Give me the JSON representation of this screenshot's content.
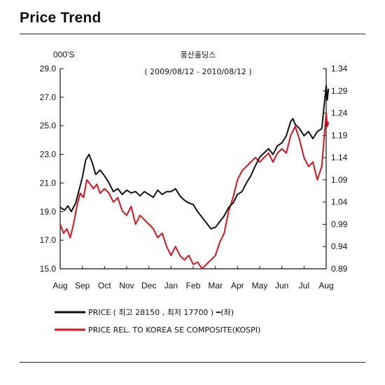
{
  "heading": "Price Trend",
  "chart_data": {
    "type": "line",
    "y_unit_label": "000'S",
    "subtitle_name": "풍산홀딩스",
    "subtitle_range": "( 2009/08/12 - 2010/08/12 )",
    "x_categories": [
      "Aug",
      "Sep",
      "Oct",
      "Nov",
      "Dec",
      "Jan",
      "Feb",
      "Mar",
      "Apr",
      "May",
      "Jun",
      "Jul",
      "Aug"
    ],
    "left_axis": {
      "ylim": [
        15.0,
        29.0
      ],
      "ticks": [
        "29.0",
        "27.0",
        "25.0",
        "23.0",
        "21.0",
        "19.0",
        "17.0",
        "15.0"
      ]
    },
    "right_axis": {
      "ylim": [
        0.89,
        1.34
      ],
      "ticks": [
        "1.34",
        "1.29",
        "1.24",
        "1.19",
        "1.14",
        "1.09",
        "1.04",
        "0.99",
        "0.94",
        "0.89"
      ]
    },
    "grid": false,
    "legend_position": "bottom-left",
    "series": [
      {
        "name": "PRICE ( 최고 28150 , 최저 17700 ) ━(좌)",
        "axis": "left",
        "color": "#111111",
        "points": [
          [
            0.0,
            19.3
          ],
          [
            0.2,
            19.1
          ],
          [
            0.35,
            19.4
          ],
          [
            0.5,
            19.0
          ],
          [
            0.7,
            19.6
          ],
          [
            0.9,
            20.8
          ],
          [
            1.0,
            21.4
          ],
          [
            1.15,
            22.6
          ],
          [
            1.3,
            23.0
          ],
          [
            1.45,
            22.4
          ],
          [
            1.6,
            21.6
          ],
          [
            1.8,
            21.9
          ],
          [
            2.0,
            21.5
          ],
          [
            2.2,
            21.0
          ],
          [
            2.4,
            20.4
          ],
          [
            2.6,
            20.6
          ],
          [
            2.8,
            20.2
          ],
          [
            3.0,
            20.5
          ],
          [
            3.2,
            20.3
          ],
          [
            3.4,
            20.4
          ],
          [
            3.6,
            20.1
          ],
          [
            3.8,
            20.4
          ],
          [
            4.0,
            20.2
          ],
          [
            4.2,
            20.0
          ],
          [
            4.4,
            20.5
          ],
          [
            4.6,
            20.2
          ],
          [
            4.8,
            20.4
          ],
          [
            5.0,
            20.4
          ],
          [
            5.2,
            20.6
          ],
          [
            5.4,
            20.1
          ],
          [
            5.6,
            19.8
          ],
          [
            5.8,
            19.6
          ],
          [
            6.0,
            19.5
          ],
          [
            6.2,
            19.0
          ],
          [
            6.4,
            18.6
          ],
          [
            6.6,
            18.2
          ],
          [
            6.8,
            17.8
          ],
          [
            7.0,
            17.9
          ],
          [
            7.2,
            18.3
          ],
          [
            7.4,
            18.7
          ],
          [
            7.6,
            19.3
          ],
          [
            7.8,
            19.6
          ],
          [
            8.0,
            20.2
          ],
          [
            8.2,
            20.4
          ],
          [
            8.4,
            21.0
          ],
          [
            8.6,
            21.5
          ],
          [
            8.8,
            22.2
          ],
          [
            9.0,
            22.8
          ],
          [
            9.2,
            23.1
          ],
          [
            9.4,
            23.4
          ],
          [
            9.6,
            23.0
          ],
          [
            9.8,
            23.6
          ],
          [
            10.0,
            23.8
          ],
          [
            10.2,
            24.3
          ],
          [
            10.4,
            25.3
          ],
          [
            10.5,
            25.5
          ],
          [
            10.6,
            25.1
          ],
          [
            10.8,
            24.8
          ],
          [
            11.0,
            24.3
          ],
          [
            11.2,
            24.6
          ],
          [
            11.4,
            24.1
          ],
          [
            11.6,
            24.6
          ],
          [
            11.8,
            24.8
          ],
          [
            11.9,
            26.3
          ],
          [
            12.0,
            27.8
          ],
          [
            12.05,
            26.8
          ],
          [
            12.1,
            27.6
          ]
        ]
      },
      {
        "name": "PRICE REL. TO KOREA SE COMPOSITE(KOSPI)",
        "axis": "right",
        "color": "#d9121b",
        "points": [
          [
            0.0,
            0.99
          ],
          [
            0.15,
            0.97
          ],
          [
            0.3,
            0.98
          ],
          [
            0.45,
            0.96
          ],
          [
            0.6,
            0.99
          ],
          [
            0.75,
            1.03
          ],
          [
            0.9,
            1.06
          ],
          [
            1.05,
            1.05
          ],
          [
            1.2,
            1.09
          ],
          [
            1.35,
            1.08
          ],
          [
            1.5,
            1.07
          ],
          [
            1.65,
            1.08
          ],
          [
            1.8,
            1.06
          ],
          [
            2.0,
            1.07
          ],
          [
            2.2,
            1.06
          ],
          [
            2.4,
            1.04
          ],
          [
            2.6,
            1.05
          ],
          [
            2.8,
            1.02
          ],
          [
            3.0,
            1.01
          ],
          [
            3.2,
            1.03
          ],
          [
            3.4,
            0.99
          ],
          [
            3.6,
            1.01
          ],
          [
            3.8,
            1.0
          ],
          [
            4.0,
            0.99
          ],
          [
            4.2,
            0.98
          ],
          [
            4.4,
            0.96
          ],
          [
            4.6,
            0.97
          ],
          [
            4.8,
            0.94
          ],
          [
            5.0,
            0.92
          ],
          [
            5.2,
            0.94
          ],
          [
            5.4,
            0.92
          ],
          [
            5.6,
            0.91
          ],
          [
            5.8,
            0.92
          ],
          [
            6.0,
            0.9
          ],
          [
            6.2,
            0.905
          ],
          [
            6.4,
            0.89
          ],
          [
            6.6,
            0.9
          ],
          [
            6.8,
            0.91
          ],
          [
            7.0,
            0.92
          ],
          [
            7.2,
            0.95
          ],
          [
            7.4,
            0.97
          ],
          [
            7.6,
            1.02
          ],
          [
            7.8,
            1.05
          ],
          [
            8.0,
            1.09
          ],
          [
            8.2,
            1.11
          ],
          [
            8.4,
            1.12
          ],
          [
            8.6,
            1.13
          ],
          [
            8.8,
            1.14
          ],
          [
            9.0,
            1.13
          ],
          [
            9.2,
            1.14
          ],
          [
            9.4,
            1.15
          ],
          [
            9.6,
            1.13
          ],
          [
            9.8,
            1.15
          ],
          [
            10.0,
            1.16
          ],
          [
            10.2,
            1.15
          ],
          [
            10.4,
            1.19
          ],
          [
            10.6,
            1.21
          ],
          [
            10.8,
            1.18
          ],
          [
            11.0,
            1.14
          ],
          [
            11.2,
            1.12
          ],
          [
            11.4,
            1.13
          ],
          [
            11.6,
            1.09
          ],
          [
            11.8,
            1.12
          ],
          [
            11.9,
            1.18
          ],
          [
            12.0,
            1.24
          ],
          [
            12.05,
            1.21
          ],
          [
            12.1,
            1.22
          ]
        ]
      }
    ]
  }
}
